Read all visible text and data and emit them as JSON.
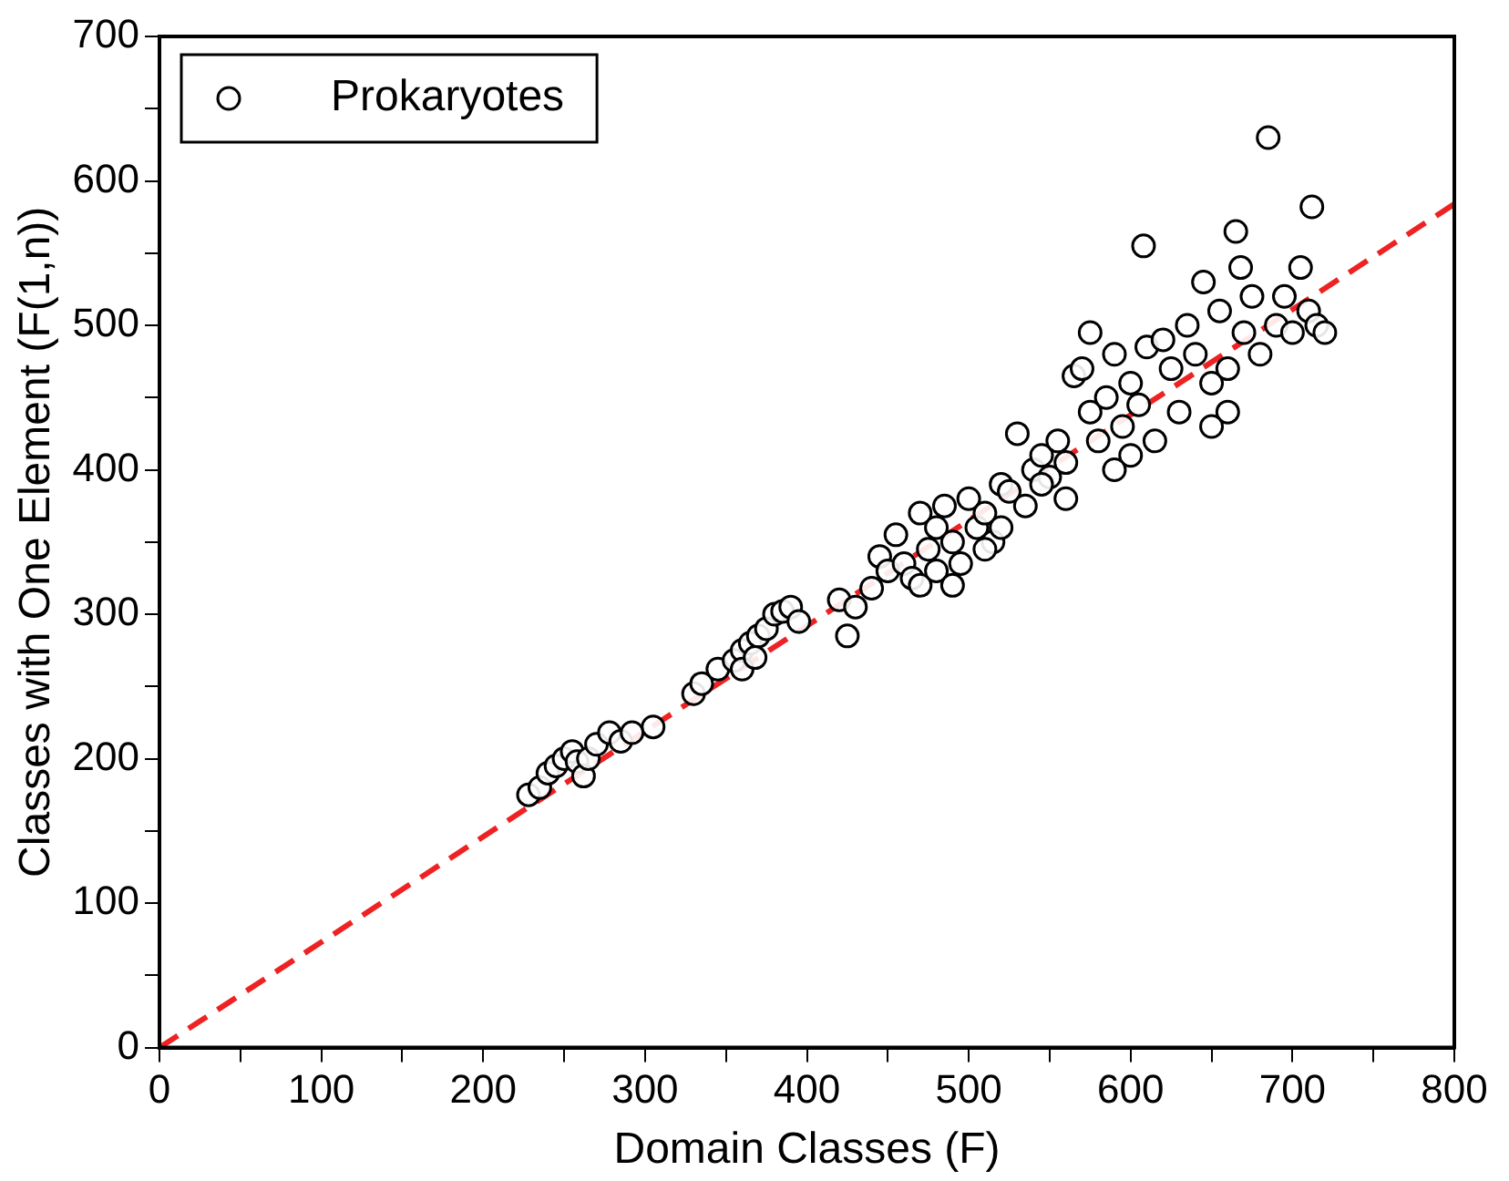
{
  "chart_data": {
    "type": "scatter",
    "xlabel": "Domain Classes (F)",
    "ylabel": "Classes with One Element (F(1,n))",
    "xlim": [
      0,
      800
    ],
    "ylim": [
      0,
      700
    ],
    "xticks": [
      0,
      {
        "value": 50,
        "label": null
      },
      100,
      {
        "value": 150,
        "label": null
      },
      200,
      {
        "value": 250,
        "label": null
      },
      300,
      {
        "value": 350,
        "label": null
      },
      400,
      {
        "value": 450,
        "label": null
      },
      500,
      {
        "value": 550,
        "label": null
      },
      600,
      {
        "value": 650,
        "label": null
      },
      700,
      {
        "value": 750,
        "label": null
      },
      800
    ],
    "yticks": [
      0,
      {
        "value": 50,
        "label": null
      },
      100,
      {
        "value": 150,
        "label": null
      },
      200,
      {
        "value": 250,
        "label": null
      },
      300,
      {
        "value": 350,
        "label": null
      },
      400,
      {
        "value": 450,
        "label": null
      },
      500,
      {
        "value": 550,
        "label": null
      },
      600,
      {
        "value": 650,
        "label": null
      },
      700
    ],
    "grid": false,
    "legend": "top left",
    "marker": "circle",
    "series": [
      {
        "name": "Prokaryotes",
        "color": "#000000",
        "x": [
          228,
          235,
          240,
          245,
          250,
          255,
          258,
          262,
          265,
          270,
          278,
          285,
          292,
          305,
          330,
          335,
          345,
          355,
          360,
          365,
          370,
          375,
          380,
          385,
          390,
          395,
          360,
          368,
          420,
          425,
          430,
          440,
          445,
          450,
          455,
          460,
          465,
          470,
          470,
          475,
          480,
          480,
          485,
          490,
          495,
          500,
          505,
          510,
          515,
          520,
          525,
          530,
          535,
          540,
          545,
          550,
          555,
          560,
          565,
          570,
          575,
          575,
          580,
          585,
          590,
          595,
          600,
          605,
          608,
          610,
          615,
          620,
          625,
          630,
          635,
          640,
          645,
          650,
          655,
          660,
          665,
          668,
          670,
          675,
          680,
          685,
          690,
          695,
          700,
          705,
          710,
          712,
          715,
          720,
          660,
          650,
          600,
          590,
          560,
          545,
          510,
          490,
          520
        ],
        "values": [
          175,
          180,
          190,
          195,
          200,
          205,
          198,
          188,
          200,
          210,
          218,
          212,
          218,
          222,
          245,
          252,
          262,
          268,
          275,
          280,
          285,
          290,
          300,
          302,
          305,
          295,
          262,
          270,
          310,
          285,
          305,
          318,
          340,
          330,
          355,
          335,
          325,
          320,
          370,
          345,
          330,
          360,
          375,
          350,
          335,
          380,
          360,
          370,
          350,
          390,
          385,
          425,
          375,
          400,
          410,
          395,
          420,
          405,
          465,
          470,
          495,
          440,
          420,
          450,
          480,
          430,
          460,
          445,
          555,
          485,
          420,
          490,
          470,
          440,
          500,
          480,
          530,
          460,
          510,
          470,
          565,
          540,
          495,
          520,
          480,
          630,
          500,
          520,
          495,
          540,
          510,
          582,
          500,
          495,
          440,
          430,
          410,
          400,
          380,
          390,
          345,
          320,
          360
        ]
      },
      {
        "type": "line",
        "color": "#ee2222",
        "line_style": "dashed",
        "marker": "none",
        "x": [
          0,
          800
        ],
        "values": [
          0,
          584
        ]
      }
    ]
  }
}
